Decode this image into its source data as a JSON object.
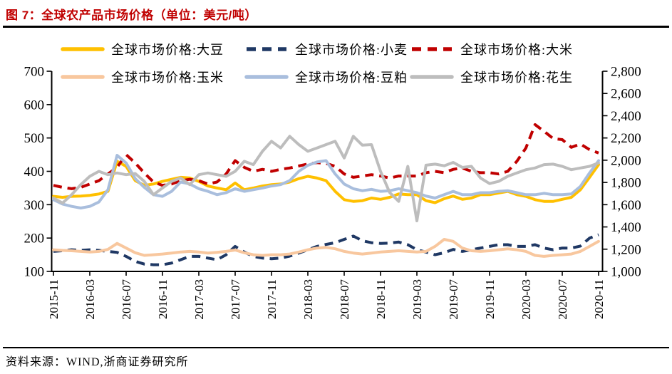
{
  "header": {
    "title": "图 7：全球农产品市场价格（单位：美元/吨）"
  },
  "footer": {
    "source": "资料来源：WIND,浙商证券研究所"
  },
  "chart_data": {
    "type": "line",
    "title": "全球农产品市场价格（单位：美元/吨）",
    "legend_position": "top",
    "grid": false,
    "x": [
      "2015-11",
      "2015-12",
      "2016-01",
      "2016-02",
      "2016-03",
      "2016-04",
      "2016-05",
      "2016-06",
      "2016-07",
      "2016-08",
      "2016-09",
      "2016-10",
      "2016-11",
      "2016-12",
      "2017-01",
      "2017-02",
      "2017-03",
      "2017-04",
      "2017-05",
      "2017-06",
      "2017-07",
      "2017-08",
      "2017-09",
      "2017-10",
      "2017-11",
      "2017-12",
      "2018-01",
      "2018-02",
      "2018-03",
      "2018-04",
      "2018-05",
      "2018-06",
      "2018-07",
      "2018-08",
      "2018-09",
      "2018-10",
      "2018-11",
      "2018-12",
      "2019-01",
      "2019-02",
      "2019-03",
      "2019-04",
      "2019-05",
      "2019-06",
      "2019-07",
      "2019-08",
      "2019-09",
      "2019-10",
      "2019-11",
      "2019-12",
      "2020-01",
      "2020-02",
      "2020-03",
      "2020-04",
      "2020-05",
      "2020-06",
      "2020-07",
      "2020-08",
      "2020-09",
      "2020-10",
      "2020-11"
    ],
    "x_tick_labels": [
      "2015-11",
      "2016-03",
      "2016-07",
      "2016-11",
      "2017-03",
      "2017-07",
      "2017-11",
      "2018-03",
      "2018-07",
      "2018-11",
      "2019-03",
      "2019-07",
      "2019-11",
      "2020-03",
      "2020-07",
      "2020-11"
    ],
    "x_tick_every": 4,
    "left_axis": {
      "min": 100,
      "max": 700,
      "step": 100,
      "labels": [
        "700",
        "600",
        "500",
        "400",
        "300",
        "200",
        "100"
      ]
    },
    "right_axis": {
      "min": 1000,
      "max": 2800,
      "step": 200,
      "labels": [
        "2,800",
        "2,600",
        "2,400",
        "2,200",
        "2,000",
        "1,800",
        "1,600",
        "1,400",
        "1,200",
        "1,000"
      ]
    },
    "series": [
      {
        "key": "soybean",
        "name": "全球市场价格:大豆",
        "color": "#FFC000",
        "style": "solid",
        "axis": "left",
        "values": [
          325,
          322,
          325,
          326,
          328,
          332,
          340,
          430,
          415,
          372,
          358,
          362,
          370,
          376,
          382,
          380,
          370,
          356,
          350,
          345,
          365,
          345,
          350,
          356,
          360,
          362,
          368,
          378,
          385,
          380,
          372,
          340,
          315,
          310,
          312,
          320,
          316,
          322,
          332,
          330,
          330,
          312,
          306,
          318,
          326,
          316,
          320,
          330,
          330,
          335,
          340,
          330,
          325,
          315,
          310,
          310,
          316,
          322,
          345,
          382,
          420
        ]
      },
      {
        "key": "wheat",
        "name": "全球市场价格:小麦",
        "color": "#1F3864",
        "style": "dashed",
        "axis": "left",
        "values": [
          160,
          162,
          165,
          163,
          165,
          163,
          160,
          157,
          145,
          130,
          122,
          120,
          120,
          125,
          135,
          145,
          145,
          140,
          135,
          150,
          175,
          158,
          145,
          140,
          138,
          140,
          146,
          155,
          165,
          175,
          181,
          186,
          196,
          206,
          192,
          186,
          184,
          185,
          188,
          180,
          165,
          158,
          150,
          156,
          166,
          160,
          165,
          170,
          175,
          180,
          180,
          175,
          175,
          180,
          170,
          165,
          170,
          170,
          176,
          200,
          210
        ]
      },
      {
        "key": "rice",
        "name": "全球市场价格:大米",
        "color": "#C00000",
        "style": "dashed",
        "axis": "left",
        "values": [
          358,
          352,
          348,
          352,
          362,
          372,
          392,
          412,
          450,
          425,
          395,
          368,
          358,
          362,
          372,
          376,
          372,
          362,
          368,
          392,
          432,
          412,
          400,
          406,
          400,
          406,
          410,
          416,
          422,
          426,
          424,
          415,
          392,
          382,
          386,
          390,
          386,
          380,
          386,
          386,
          386,
          396,
          400,
          396,
          406,
          410,
          400,
          396,
          396,
          392,
          400,
          430,
          470,
          540,
          520,
          498,
          495,
          472,
          482,
          465,
          455
        ]
      },
      {
        "key": "corn",
        "name": "全球市场价格:玉米",
        "color": "#F8C79E",
        "style": "solid",
        "axis": "left",
        "values": [
          165,
          163,
          162,
          160,
          158,
          160,
          166,
          184,
          170,
          156,
          148,
          150,
          152,
          155,
          158,
          160,
          158,
          155,
          157,
          160,
          164,
          156,
          150,
          148,
          150,
          150,
          152,
          158,
          165,
          170,
          172,
          168,
          160,
          155,
          152,
          155,
          158,
          160,
          162,
          160,
          158,
          160,
          175,
          196,
          190,
          170,
          162,
          160,
          162,
          165,
          168,
          165,
          160,
          148,
          145,
          148,
          150,
          152,
          160,
          175,
          190
        ]
      },
      {
        "key": "soybean-meal",
        "name": "全球市场价格:豆粕",
        "color": "#A9BEDD",
        "style": "solid",
        "axis": "left",
        "values": [
          315,
          302,
          295,
          290,
          295,
          308,
          345,
          448,
          425,
          378,
          352,
          330,
          325,
          340,
          368,
          362,
          348,
          340,
          330,
          336,
          348,
          340,
          345,
          350,
          356,
          360,
          372,
          400,
          418,
          428,
          432,
          392,
          362,
          348,
          342,
          346,
          340,
          342,
          348,
          342,
          336,
          326,
          320,
          330,
          340,
          330,
          330,
          336,
          336,
          340,
          342,
          336,
          330,
          330,
          334,
          330,
          330,
          332,
          355,
          395,
          432
        ]
      },
      {
        "key": "peanut",
        "name": "全球市场价格:花生",
        "color": "#BDBDBD",
        "style": "solid",
        "axis": "right",
        "values": [
          1660,
          1615,
          1690,
          1780,
          1855,
          1900,
          1870,
          1885,
          1870,
          1880,
          1810,
          1690,
          1750,
          1810,
          1840,
          1780,
          1870,
          1885,
          1870,
          1855,
          1900,
          1990,
          1960,
          2080,
          2170,
          2110,
          2215,
          2140,
          2080,
          2110,
          2140,
          2170,
          2020,
          2215,
          2135,
          2140,
          1900,
          1710,
          1630,
          1945,
          1455,
          1955,
          1965,
          1950,
          1980,
          1935,
          1945,
          1840,
          1790,
          1810,
          1855,
          1885,
          1915,
          1930,
          1960,
          1965,
          1945,
          1915,
          1930,
          1945,
          1975
        ]
      }
    ],
    "colors": {
      "title": "#C00000",
      "axis": "#000000"
    }
  }
}
